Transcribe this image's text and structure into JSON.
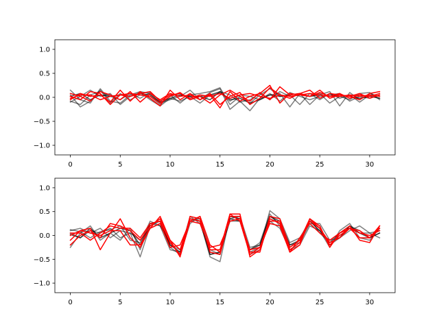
{
  "chart_data": [
    {
      "type": "line",
      "title": "",
      "xlabel": "",
      "ylabel": "",
      "xlim": [
        -1.55,
        32.55
      ],
      "ylim": [
        -1.2,
        1.2
      ],
      "xticks": [
        0,
        5,
        10,
        15,
        20,
        25,
        30
      ],
      "yticks": [
        -1.0,
        -0.5,
        0.0,
        0.5,
        1.0
      ],
      "xtick_labels": [
        "0",
        "5",
        "10",
        "15",
        "20",
        "25",
        "30"
      ],
      "ytick_labels": [
        "−1.0",
        "−0.5",
        "0.0",
        "0.5",
        "1.0"
      ],
      "grid": false,
      "x": [
        0,
        1,
        2,
        3,
        4,
        5,
        6,
        7,
        8,
        9,
        10,
        11,
        12,
        13,
        14,
        15,
        16,
        17,
        18,
        19,
        20,
        21,
        22,
        23,
        24,
        25,
        26,
        27,
        28,
        29,
        30,
        31
      ],
      "series": [
        {
          "color": "#000000",
          "opacity": 0.5,
          "values": [
            0.15,
            -0.05,
            -0.12,
            0.18,
            -0.08,
            -0.12,
            0.05,
            0.12,
            0.08,
            -0.12,
            -0.05,
            0.02,
            0.15,
            -0.05,
            0.1,
            0.18,
            -0.25,
            -0.08,
            -0.28,
            -0.02,
            0.05,
            0.08,
            -0.2,
            0.08,
            -0.15,
            0.05,
            0.12,
            -0.18,
            0.1,
            -0.05,
            0.08,
            0.02
          ]
        },
        {
          "color": "#000000",
          "opacity": 0.5,
          "values": [
            -0.08,
            -0.15,
            0.05,
            0.12,
            0.02,
            -0.05,
            0.08,
            -0.02,
            0.1,
            -0.08,
            0.05,
            -0.12,
            0.05,
            0.08,
            0.12,
            0.2,
            -0.15,
            0.02,
            -0.12,
            0.05,
            0.18,
            0.02,
            0.05,
            -0.15,
            0.08,
            -0.05,
            0.08,
            -0.02,
            0.05,
            -0.1,
            0.05,
            -0.02
          ]
        },
        {
          "color": "#000000",
          "opacity": 0.5,
          "values": [
            0.05,
            -0.2,
            -0.08,
            0.15,
            -0.12,
            0.08,
            -0.05,
            0.05,
            0.02,
            -0.15,
            0.02,
            0.08,
            -0.05,
            0.02,
            0.05,
            0.12,
            0.05,
            -0.1,
            -0.05,
            0.08,
            -0.05,
            0.12,
            0.02,
            0.05,
            0.02,
            0.08,
            -0.12,
            0.02,
            -0.05,
            0.08,
            0.1,
            -0.05
          ]
        },
        {
          "color": "#000000",
          "opacity": 0.5,
          "values": [
            -0.1,
            0.02,
            0.15,
            0.02,
            0.08,
            -0.15,
            0.02,
            0.1,
            -0.05,
            -0.18,
            -0.02,
            -0.08,
            0.02,
            -0.12,
            0.05,
            0.1,
            -0.08,
            0.05,
            0.02,
            -0.05,
            0.08,
            -0.08,
            0.1,
            0.02,
            -0.05,
            0.02,
            0.05,
            0.08,
            -0.08,
            0.02,
            -0.02,
            0.05
          ]
        },
        {
          "color": "#000000",
          "opacity": 0.7,
          "values": [
            0.02,
            0.08,
            -0.05,
            0.05,
            0.02,
            0.05,
            0.02,
            0.08,
            0.05,
            -0.1,
            -0.02,
            0.05,
            0.02,
            0.02,
            -0.05,
            0.12,
            -0.05,
            -0.02,
            -0.12,
            -0.05,
            0.05,
            0.02,
            0.05,
            0.08,
            0.02,
            0.05,
            0.02,
            0.05,
            0.02,
            -0.02,
            0.02,
            -0.02
          ]
        },
        {
          "color": "#ff0000",
          "opacity": 1,
          "values": [
            -0.05,
            0.08,
            0.02,
            0.05,
            -0.1,
            0.15,
            -0.08,
            0.12,
            -0.02,
            -0.18,
            0.15,
            -0.05,
            0.08,
            -0.05,
            0.05,
            -0.22,
            0.12,
            -0.08,
            0.02,
            0.08,
            0.25,
            -0.12,
            0.08,
            0.05,
            0.02,
            0.15,
            -0.02,
            0.05,
            0.02,
            -0.05,
            0.08,
            0.12
          ]
        },
        {
          "color": "#ff0000",
          "opacity": 1,
          "values": [
            0.02,
            -0.05,
            0.12,
            0.08,
            -0.15,
            0.05,
            0.08,
            0.05,
            0.02,
            -0.12,
            0.02,
            0.1,
            -0.05,
            0.02,
            -0.12,
            0.05,
            0.15,
            0.02,
            -0.08,
            0.1,
            -0.05,
            0.22,
            0.05,
            0.08,
            0.15,
            -0.02,
            0.08,
            0.05,
            0.02,
            0.08,
            -0.02,
            0.05
          ]
        },
        {
          "color": "#ff0000",
          "opacity": 1,
          "values": [
            0.08,
            0.02,
            -0.08,
            0.12,
            0.05,
            -0.05,
            0.12,
            -0.1,
            0.08,
            -0.05,
            0.08,
            0.02,
            0.05,
            -0.05,
            0.08,
            -0.15,
            0.02,
            0.1,
            -0.15,
            -0.02,
            0.2,
            0.05,
            -0.02,
            0.08,
            0.02,
            0.1,
            0.02,
            0.08,
            -0.02,
            0.05,
            0.02,
            0.08
          ]
        },
        {
          "color": "#ff0000",
          "opacity": 1,
          "values": [
            -0.02,
            0.05,
            0.05,
            -0.05,
            0.02,
            0.05,
            0.02,
            0.08,
            0.12,
            -0.08,
            0.05,
            0.08,
            -0.02,
            0.05,
            0.02,
            0.08,
            -0.02,
            0.05,
            0.08,
            0.02,
            -0.02,
            0.05,
            0.02,
            0.05,
            0.08,
            0.05,
            0.02,
            0.02,
            0.05,
            0.02,
            0.05,
            0.02
          ]
        }
      ]
    },
    {
      "type": "line",
      "title": "",
      "xlabel": "",
      "ylabel": "",
      "xlim": [
        -1.55,
        32.55
      ],
      "ylim": [
        -1.2,
        1.2
      ],
      "xticks": [
        0,
        5,
        10,
        15,
        20,
        25,
        30
      ],
      "yticks": [
        -1.0,
        -0.5,
        0.0,
        0.5,
        1.0
      ],
      "xtick_labels": [
        "0",
        "5",
        "10",
        "15",
        "20",
        "25",
        "30"
      ],
      "ytick_labels": [
        "−1.0",
        "−0.5",
        "0.0",
        "0.5",
        "1.0"
      ],
      "grid": false,
      "x": [
        0,
        1,
        2,
        3,
        4,
        5,
        6,
        7,
        8,
        9,
        10,
        11,
        12,
        13,
        14,
        15,
        16,
        17,
        18,
        19,
        20,
        21,
        22,
        23,
        24,
        25,
        26,
        27,
        28,
        29,
        30,
        31
      ],
      "series": [
        {
          "color": "#000000",
          "opacity": 0.5,
          "values": [
            0.1,
            0.15,
            0.05,
            0.15,
            -0.05,
            0.1,
            0.05,
            -0.45,
            0.2,
            0.3,
            -0.25,
            -0.4,
            0.35,
            0.3,
            -0.45,
            -0.55,
            0.4,
            0.35,
            -0.35,
            -0.25,
            0.52,
            0.35,
            -0.15,
            -0.05,
            0.3,
            0.15,
            -0.2,
            -0.05,
            0.2,
            0.1,
            -0.05,
            0.05
          ]
        },
        {
          "color": "#000000",
          "opacity": 0.5,
          "values": [
            -0.25,
            0.05,
            0.2,
            -0.1,
            0.05,
            -0.1,
            0.15,
            -0.3,
            0.25,
            0.2,
            -0.3,
            -0.35,
            0.4,
            0.25,
            -0.35,
            -0.4,
            0.35,
            0.4,
            -0.25,
            -0.2,
            0.4,
            0.25,
            -0.25,
            -0.1,
            0.35,
            0.05,
            -0.15,
            0.05,
            0.15,
            0.05,
            0.05,
            -0.05
          ]
        },
        {
          "color": "#000000",
          "opacity": 0.5,
          "values": [
            0.05,
            -0.05,
            0.1,
            0.05,
            0.15,
            -0.05,
            0.05,
            -0.1,
            0.15,
            0.25,
            -0.2,
            -0.3,
            0.3,
            0.35,
            -0.4,
            -0.35,
            0.3,
            0.3,
            -0.3,
            -0.15,
            0.45,
            0.2,
            -0.2,
            -0.15,
            0.25,
            0.25,
            -0.1,
            -0.05,
            0.1,
            0.2,
            0.05,
            0.1
          ]
        },
        {
          "color": "#000000",
          "opacity": 0.5,
          "values": [
            0.12,
            0.08,
            -0.05,
            0.08,
            0.12,
            0.2,
            -0.1,
            -0.15,
            0.3,
            0.2,
            -0.15,
            -0.4,
            0.25,
            0.4,
            -0.3,
            -0.4,
            0.4,
            0.35,
            -0.4,
            -0.3,
            0.3,
            0.15,
            -0.3,
            -0.2,
            0.2,
            0.1,
            -0.25,
            0.1,
            0.25,
            -0.05,
            -0.1,
            0.15
          ]
        },
        {
          "color": "#000000",
          "opacity": 0.7,
          "values": [
            0.02,
            -0.05,
            0.15,
            -0.05,
            0.05,
            0.15,
            0.1,
            -0.2,
            0.25,
            0.3,
            -0.2,
            -0.35,
            0.35,
            0.3,
            -0.4,
            -0.35,
            0.35,
            0.3,
            -0.3,
            -0.2,
            0.4,
            0.3,
            -0.2,
            -0.1,
            0.3,
            0.1,
            -0.15,
            -0.05,
            0.2,
            0.05,
            -0.05,
            0.05
          ]
        },
        {
          "color": "#ff0000",
          "opacity": 1,
          "values": [
            -0.1,
            0.1,
            0.15,
            -0.3,
            0.05,
            0.35,
            -0.05,
            -0.25,
            0.15,
            0.4,
            -0.1,
            -0.45,
            0.3,
            0.4,
            -0.2,
            -0.35,
            0.45,
            0.45,
            -0.45,
            -0.3,
            0.3,
            0.3,
            -0.35,
            -0.2,
            0.35,
            0.2,
            -0.25,
            0.05,
            0.2,
            -0.1,
            -0.15,
            0.2
          ]
        },
        {
          "color": "#ff0000",
          "opacity": 1,
          "values": [
            0.05,
            0.05,
            -0.1,
            0.05,
            0.2,
            0.15,
            0.15,
            -0.05,
            0.25,
            0.3,
            -0.15,
            -0.4,
            0.4,
            0.35,
            -0.35,
            -0.4,
            0.4,
            0.4,
            -0.35,
            -0.35,
            0.4,
            0.35,
            -0.25,
            -0.1,
            0.35,
            0.15,
            -0.2,
            0.0,
            0.15,
            0.1,
            -0.05,
            0.15
          ]
        },
        {
          "color": "#ff0000",
          "opacity": 1,
          "values": [
            -0.2,
            0.0,
            0.1,
            -0.05,
            0.25,
            0.2,
            0.1,
            -0.1,
            0.2,
            0.35,
            -0.1,
            -0.3,
            0.35,
            0.3,
            -0.3,
            -0.3,
            0.45,
            0.3,
            -0.4,
            -0.25,
            0.35,
            0.25,
            -0.3,
            -0.15,
            0.3,
            0.15,
            -0.15,
            -0.05,
            0.15,
            0.05,
            0.0,
            0.1
          ]
        },
        {
          "color": "#ff0000",
          "opacity": 1,
          "values": [
            0.0,
            0.1,
            0.05,
            0.0,
            0.1,
            0.1,
            -0.2,
            -0.2,
            0.15,
            0.25,
            -0.25,
            -0.2,
            0.3,
            0.25,
            -0.25,
            -0.2,
            0.3,
            0.35,
            -0.3,
            -0.25,
            0.25,
            0.2,
            -0.35,
            -0.05,
            0.25,
            0.05,
            -0.1,
            0.05,
            0.15,
            -0.05,
            -0.05,
            0.2
          ]
        }
      ]
    }
  ]
}
